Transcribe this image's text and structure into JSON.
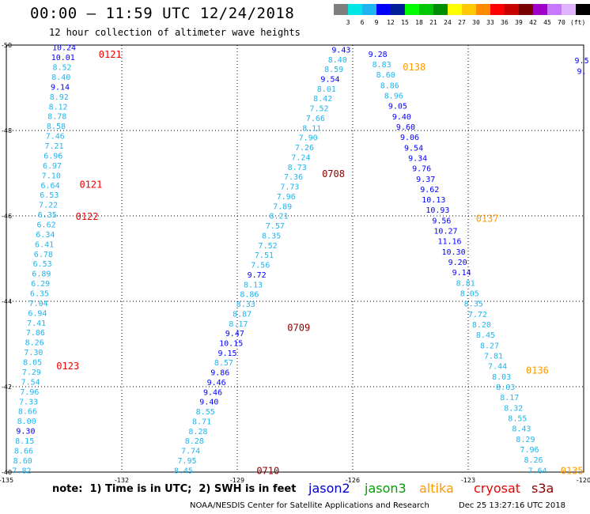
{
  "header": {
    "title": "00:00 – 11:59 UTC 12/24/2018",
    "subtitle": "12 hour collection of altimeter wave heights"
  },
  "color_scale": {
    "unit_label": "(ft)",
    "colors": [
      "#7f7f7f",
      "#00e5e5",
      "#1eb4f0",
      "#0000ff",
      "#001e96",
      "#00ff00",
      "#00c800",
      "#008c00",
      "#ffff00",
      "#ffc800",
      "#ff8c00",
      "#ff0000",
      "#c80000",
      "#780000",
      "#a000c8",
      "#c878ff",
      "#e0b4ff",
      "#000000"
    ],
    "labels": [
      "3",
      "6",
      "9",
      "12",
      "15",
      "18",
      "21",
      "24",
      "27",
      "30",
      "33",
      "36",
      "39",
      "42",
      "45",
      "70"
    ]
  },
  "footer": {
    "note": "note:  1) Time is in UTC;  2) SWH is in feet",
    "satellites": [
      {
        "name": "jason2",
        "color": "#0000cc"
      },
      {
        "name": "jason3",
        "color": "#00a000"
      },
      {
        "name": "altika",
        "color": "#ff9900"
      },
      {
        "name": "cryosat",
        "color": "#ee0000"
      },
      {
        "name": "s3a",
        "color": "#880000"
      }
    ],
    "credit": "NOAA/NESDIS Center for Satellite Applications and Research",
    "timestamp": "Dec 25 13:27:16 UTC 2018"
  },
  "chart_data": {
    "type": "scatter",
    "title": "00:00 – 11:59 UTC 12/24/2018",
    "subtitle": "12 hour collection of altimeter wave heights",
    "xlim": [
      -135,
      -120
    ],
    "ylim": [
      -50,
      -40
    ],
    "x_ticks": [
      -135,
      -132,
      -129,
      -126,
      -123,
      -120
    ],
    "y_ticks": [
      -40,
      -42,
      -44,
      -46,
      -48,
      -50
    ],
    "grid": true,
    "tracks": [
      {
        "x0": -134.6,
        "y0": -40.05,
        "x1": -133.5,
        "y1": -49.95,
        "values": [
          "7.82",
          "8.60",
          "8.66",
          "8.15",
          "9.30",
          "8.00",
          "8.66",
          "7.33",
          "7.96",
          "7.54",
          "7.29",
          "8.05",
          "7.30",
          "8.26",
          "7.86",
          "7.41",
          "6.94",
          "7.04",
          "6.35",
          "6.29",
          "6.89",
          "6.53",
          "6.78",
          "6.41",
          "6.34",
          "6.62",
          "6.35",
          "7.22",
          "6.53",
          "6.64",
          "7.10",
          "6.97",
          "6.96",
          "7.21",
          "7.46",
          "8.58",
          "8.78",
          "8.12",
          "8.92",
          "9.14",
          "8.40",
          "8.52",
          "10.01",
          "10.24"
        ]
      },
      {
        "x0": -130.4,
        "y0": -40.05,
        "x1": -126.3,
        "y1": -49.9,
        "values": [
          "8.45",
          "7.95",
          "7.74",
          "8.28",
          "8.28",
          "8.71",
          "8.55",
          "9.40",
          "9.46",
          "9.46",
          "9.86",
          "8.57",
          "9.15",
          "10.15",
          "9.47",
          "8.17",
          "8.87",
          "8.33",
          "8.86",
          "8.13",
          "9.72",
          "7.56",
          "7.51",
          "7.52",
          "8.35",
          "7.57",
          "8.21",
          "7.89",
          "7.96",
          "7.73",
          "7.36",
          "8.73",
          "7.24",
          "7.26",
          "7.90",
          "8.11",
          "7.66",
          "7.52",
          "8.42",
          "8.01",
          "9.54",
          "8.59",
          "8.40",
          "9.43"
        ]
      },
      {
        "x0": -121.2,
        "y0": -40.05,
        "x1": -125.35,
        "y1": -49.8,
        "values": [
          "7.64",
          "8.26",
          "7.96",
          "8.29",
          "8.43",
          "8.55",
          "8.32",
          "8.17",
          "8.03",
          "8.03",
          "7.44",
          "7.81",
          "8.27",
          "8.45",
          "8.20",
          "7.72",
          "8.35",
          "8.05",
          "8.81",
          "9.14",
          "9.20",
          "10.30",
          "11.16",
          "10.27",
          "9.56",
          "10.93",
          "10.13",
          "9.62",
          "9.37",
          "9.76",
          "9.34",
          "9.54",
          "9.06",
          "9.60",
          "9.40",
          "9.05",
          "8.96",
          "8.86",
          "8.60",
          "8.83",
          "9.28"
        ]
      },
      {
        "x0": -120.05,
        "y0": -49.4,
        "x1": -120.05,
        "y1": -49.65,
        "values": [
          "9.",
          "9.5"
        ]
      }
    ],
    "time_labels": [
      {
        "label": "0710",
        "x": -128.5,
        "y": -40.05,
        "sat": "s3a"
      },
      {
        "label": "0709",
        "x": -127.7,
        "y": -43.4,
        "sat": "s3a"
      },
      {
        "label": "0708",
        "x": -126.8,
        "y": -47.0,
        "sat": "s3a"
      },
      {
        "label": "0123",
        "x": -133.7,
        "y": -42.5,
        "sat": "cryosat"
      },
      {
        "label": "0122",
        "x": -133.2,
        "y": -46.0,
        "sat": "cryosat"
      },
      {
        "label": "0121",
        "x": -133.1,
        "y": -46.75,
        "sat": "cryosat"
      },
      {
        "label": "0121",
        "x": -132.6,
        "y": -49.8,
        "sat": "cryosat"
      },
      {
        "label": "0135",
        "x": -120.6,
        "y": -40.05,
        "sat": "altika"
      },
      {
        "label": "0136",
        "x": -121.5,
        "y": -42.4,
        "sat": "altika"
      },
      {
        "label": "0137",
        "x": -122.8,
        "y": -45.95,
        "sat": "altika"
      },
      {
        "label": "0138",
        "x": -124.7,
        "y": -49.5,
        "sat": "altika"
      }
    ]
  }
}
